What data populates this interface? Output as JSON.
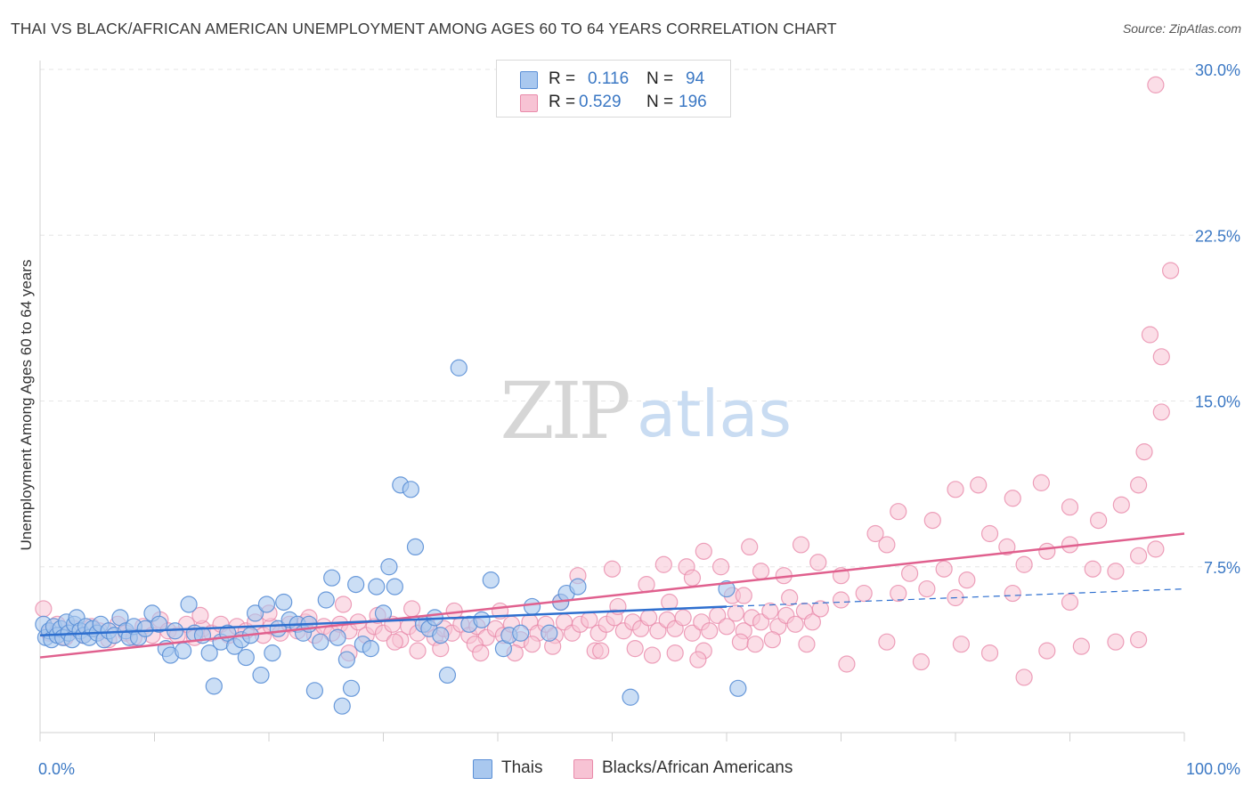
{
  "title": "THAI VS BLACK/AFRICAN AMERICAN UNEMPLOYMENT AMONG AGES 60 TO 64 YEARS CORRELATION CHART",
  "source": "Source: ZipAtlas.com",
  "watermark": {
    "zip": "ZIP",
    "atlas": "atlas"
  },
  "legend": {
    "r_label": "R =",
    "n_label": "N =",
    "series": [
      {
        "name": "Thais",
        "r": "0.116",
        "n": "94"
      },
      {
        "name": "Blacks/African Americans",
        "r": "0.529",
        "n": "196"
      }
    ]
  },
  "colors": {
    "thai_fill": "#a9c8ef",
    "thai_stroke": "#5a8fd6",
    "thai_line": "#2e6fcf",
    "black_fill": "#f7c3d4",
    "black_stroke": "#e98aaa",
    "black_line": "#e0608e",
    "axis_label": "#3b78c4",
    "grid": "#e6e6e6"
  },
  "chart_data": {
    "type": "scatter",
    "title": "THAI VS BLACK/AFRICAN AMERICAN UNEMPLOYMENT AMONG AGES 60 TO 64 YEARS CORRELATION CHART",
    "xlabel": "",
    "ylabel": "Unemployment Among Ages 60 to 64 years",
    "xlim": [
      0,
      100
    ],
    "ylim": [
      0,
      30
    ],
    "x_tick_labels": [
      "0.0%",
      "100.0%"
    ],
    "y_ticks": [
      7.5,
      15.0,
      22.5,
      30.0
    ],
    "y_tick_labels": [
      "7.5%",
      "15.0%",
      "22.5%",
      "30.0%"
    ],
    "grid": true,
    "legend_position": "top-center",
    "series": [
      {
        "name": "Thais",
        "r": 0.116,
        "n": 94,
        "trend": {
          "x": [
            0,
            60,
            100
          ],
          "y": [
            4.4,
            5.7,
            6.5
          ],
          "solid_until": 60
        },
        "points": [
          [
            0.3,
            4.9
          ],
          [
            0.5,
            4.3
          ],
          [
            0.8,
            4.6
          ],
          [
            1.0,
            4.2
          ],
          [
            1.2,
            4.8
          ],
          [
            1.5,
            4.4
          ],
          [
            1.8,
            4.7
          ],
          [
            2.0,
            4.3
          ],
          [
            2.3,
            5.0
          ],
          [
            2.5,
            4.5
          ],
          [
            2.8,
            4.2
          ],
          [
            3.0,
            4.9
          ],
          [
            3.2,
            5.2
          ],
          [
            3.5,
            4.6
          ],
          [
            3.8,
            4.4
          ],
          [
            4.0,
            4.8
          ],
          [
            4.3,
            4.3
          ],
          [
            4.6,
            4.7
          ],
          [
            5.0,
            4.5
          ],
          [
            5.3,
            4.9
          ],
          [
            5.6,
            4.2
          ],
          [
            6.0,
            4.6
          ],
          [
            6.5,
            4.4
          ],
          [
            7.0,
            5.2
          ],
          [
            7.5,
            4.6
          ],
          [
            7.8,
            4.3
          ],
          [
            8.2,
            4.8
          ],
          [
            8.6,
            4.3
          ],
          [
            9.2,
            4.7
          ],
          [
            9.8,
            5.4
          ],
          [
            10.4,
            4.9
          ],
          [
            11.0,
            3.8
          ],
          [
            11.4,
            3.5
          ],
          [
            11.8,
            4.6
          ],
          [
            12.5,
            3.7
          ],
          [
            13.0,
            5.8
          ],
          [
            13.5,
            4.5
          ],
          [
            14.2,
            4.4
          ],
          [
            14.8,
            3.6
          ],
          [
            15.2,
            2.1
          ],
          [
            15.8,
            4.1
          ],
          [
            16.4,
            4.5
          ],
          [
            17.0,
            3.9
          ],
          [
            17.6,
            4.2
          ],
          [
            18.0,
            3.4
          ],
          [
            18.4,
            4.4
          ],
          [
            18.8,
            5.4
          ],
          [
            19.3,
            2.6
          ],
          [
            19.8,
            5.8
          ],
          [
            20.3,
            3.6
          ],
          [
            20.8,
            4.7
          ],
          [
            21.3,
            5.9
          ],
          [
            21.8,
            5.1
          ],
          [
            22.5,
            4.9
          ],
          [
            23.0,
            4.5
          ],
          [
            23.5,
            4.9
          ],
          [
            24.0,
            1.9
          ],
          [
            24.5,
            4.1
          ],
          [
            25.0,
            6.0
          ],
          [
            25.5,
            7.0
          ],
          [
            26.0,
            4.3
          ],
          [
            26.4,
            1.2
          ],
          [
            26.8,
            3.3
          ],
          [
            27.2,
            2.0
          ],
          [
            27.6,
            6.7
          ],
          [
            28.2,
            4.0
          ],
          [
            28.9,
            3.8
          ],
          [
            29.4,
            6.6
          ],
          [
            30.0,
            5.4
          ],
          [
            30.5,
            7.5
          ],
          [
            31.0,
            6.6
          ],
          [
            31.5,
            11.2
          ],
          [
            32.4,
            11.0
          ],
          [
            32.8,
            8.4
          ],
          [
            33.5,
            4.9
          ],
          [
            34.0,
            4.7
          ],
          [
            34.5,
            5.2
          ],
          [
            35.0,
            4.4
          ],
          [
            35.6,
            2.6
          ],
          [
            36.6,
            16.5
          ],
          [
            37.5,
            4.9
          ],
          [
            38.6,
            5.1
          ],
          [
            39.4,
            6.9
          ],
          [
            40.5,
            3.8
          ],
          [
            41.0,
            4.4
          ],
          [
            42.0,
            4.5
          ],
          [
            43.0,
            5.7
          ],
          [
            44.5,
            4.5
          ],
          [
            45.5,
            5.9
          ],
          [
            46.0,
            6.3
          ],
          [
            47.0,
            6.6
          ],
          [
            51.6,
            1.6
          ],
          [
            60.0,
            6.5
          ],
          [
            61.0,
            2.0
          ]
        ]
      },
      {
        "name": "Blacks/African Americans",
        "r": 0.529,
        "n": 196,
        "trend": {
          "x": [
            0,
            100
          ],
          "y": [
            3.4,
            9.0
          ]
        },
        "points": [
          [
            0.3,
            5.6
          ],
          [
            0.8,
            4.5
          ],
          [
            1.5,
            4.9
          ],
          [
            2.2,
            4.3
          ],
          [
            3.0,
            4.7
          ],
          [
            3.8,
            4.4
          ],
          [
            4.5,
            4.8
          ],
          [
            5.2,
            4.6
          ],
          [
            6.0,
            4.2
          ],
          [
            6.8,
            4.9
          ],
          [
            7.5,
            4.5
          ],
          [
            8.2,
            4.3
          ],
          [
            9.0,
            4.8
          ],
          [
            9.8,
            4.4
          ],
          [
            10.5,
            5.1
          ],
          [
            11.2,
            4.6
          ],
          [
            12.0,
            4.4
          ],
          [
            12.8,
            4.9
          ],
          [
            13.5,
            4.3
          ],
          [
            14.2,
            4.7
          ],
          [
            15.0,
            4.5
          ],
          [
            15.8,
            4.9
          ],
          [
            16.5,
            4.4
          ],
          [
            17.2,
            4.8
          ],
          [
            18.0,
            4.6
          ],
          [
            18.8,
            5.0
          ],
          [
            19.5,
            4.4
          ],
          [
            20.2,
            4.8
          ],
          [
            21.0,
            4.5
          ],
          [
            21.8,
            4.9
          ],
          [
            22.5,
            4.6
          ],
          [
            23.2,
            5.0
          ],
          [
            24.0,
            4.4
          ],
          [
            24.8,
            4.8
          ],
          [
            25.5,
            4.5
          ],
          [
            26.2,
            4.9
          ],
          [
            27.0,
            4.6
          ],
          [
            27.8,
            5.0
          ],
          [
            28.5,
            4.4
          ],
          [
            29.2,
            4.8
          ],
          [
            30.0,
            4.5
          ],
          [
            30.8,
            4.9
          ],
          [
            31.5,
            4.2
          ],
          [
            32.2,
            4.8
          ],
          [
            33.0,
            4.5
          ],
          [
            33.8,
            4.9
          ],
          [
            34.5,
            4.3
          ],
          [
            35.3,
            4.7
          ],
          [
            36.0,
            4.5
          ],
          [
            36.8,
            4.9
          ],
          [
            37.5,
            4.4
          ],
          [
            38.2,
            4.8
          ],
          [
            39.0,
            4.3
          ],
          [
            39.8,
            4.7
          ],
          [
            40.5,
            4.4
          ],
          [
            41.2,
            4.9
          ],
          [
            42.0,
            4.2
          ],
          [
            42.8,
            5.0
          ],
          [
            43.5,
            4.5
          ],
          [
            44.2,
            4.9
          ],
          [
            45.0,
            4.4
          ],
          [
            45.8,
            5.0
          ],
          [
            46.5,
            4.5
          ],
          [
            47.2,
            4.9
          ],
          [
            48.0,
            5.1
          ],
          [
            48.8,
            4.5
          ],
          [
            49.5,
            4.9
          ],
          [
            50.2,
            5.2
          ],
          [
            51.0,
            4.6
          ],
          [
            51.8,
            5.0
          ],
          [
            52.5,
            4.7
          ],
          [
            53.2,
            5.2
          ],
          [
            54.0,
            4.6
          ],
          [
            54.8,
            5.1
          ],
          [
            55.5,
            4.7
          ],
          [
            56.2,
            5.2
          ],
          [
            57.0,
            4.5
          ],
          [
            57.8,
            5.0
          ],
          [
            58.5,
            4.6
          ],
          [
            59.2,
            5.3
          ],
          [
            60.0,
            4.8
          ],
          [
            60.8,
            5.4
          ],
          [
            61.5,
            4.6
          ],
          [
            62.2,
            5.2
          ],
          [
            63.0,
            5.0
          ],
          [
            63.8,
            5.5
          ],
          [
            64.5,
            4.8
          ],
          [
            65.2,
            5.3
          ],
          [
            66.0,
            4.9
          ],
          [
            66.8,
            5.5
          ],
          [
            67.5,
            5.0
          ],
          [
            68.2,
            5.6
          ],
          [
            14.0,
            5.3
          ],
          [
            20.0,
            5.4
          ],
          [
            23.5,
            5.2
          ],
          [
            26.5,
            5.8
          ],
          [
            29.5,
            5.3
          ],
          [
            32.5,
            5.6
          ],
          [
            36.2,
            5.5
          ],
          [
            40.2,
            5.5
          ],
          [
            45.5,
            5.9
          ],
          [
            50.5,
            5.7
          ],
          [
            55.0,
            5.9
          ],
          [
            60.5,
            6.2
          ],
          [
            65.5,
            6.1
          ],
          [
            70.0,
            6.0
          ],
          [
            75.0,
            6.3
          ],
          [
            80.0,
            6.1
          ],
          [
            85.0,
            6.3
          ],
          [
            90.0,
            5.9
          ],
          [
            31.0,
            4.1
          ],
          [
            35.0,
            3.8
          ],
          [
            38.0,
            4.0
          ],
          [
            41.5,
            3.6
          ],
          [
            44.8,
            3.9
          ],
          [
            48.5,
            3.7
          ],
          [
            52.0,
            3.8
          ],
          [
            55.5,
            3.6
          ],
          [
            58.0,
            3.7
          ],
          [
            61.2,
            4.1
          ],
          [
            64.0,
            4.2
          ],
          [
            67.0,
            4.0
          ],
          [
            70.5,
            3.1
          ],
          [
            74.0,
            4.1
          ],
          [
            77.0,
            3.2
          ],
          [
            80.5,
            4.0
          ],
          [
            83.0,
            3.6
          ],
          [
            86.0,
            2.5
          ],
          [
            88.0,
            3.7
          ],
          [
            91.0,
            3.9
          ],
          [
            94.0,
            4.1
          ],
          [
            96.0,
            4.2
          ],
          [
            27.0,
            3.6
          ],
          [
            33.0,
            3.7
          ],
          [
            38.5,
            3.6
          ],
          [
            43.0,
            4.0
          ],
          [
            49.0,
            3.7
          ],
          [
            53.5,
            3.5
          ],
          [
            57.5,
            3.3
          ],
          [
            62.5,
            4.0
          ],
          [
            56.5,
            7.5
          ],
          [
            57.0,
            7.0
          ],
          [
            59.5,
            7.5
          ],
          [
            61.5,
            6.2
          ],
          [
            63.0,
            7.3
          ],
          [
            65.0,
            7.1
          ],
          [
            66.5,
            8.5
          ],
          [
            68.0,
            7.7
          ],
          [
            70.0,
            7.1
          ],
          [
            72.0,
            6.3
          ],
          [
            74.0,
            8.5
          ],
          [
            76.0,
            7.2
          ],
          [
            77.5,
            6.5
          ],
          [
            79.0,
            7.4
          ],
          [
            81.0,
            6.9
          ],
          [
            83.0,
            9.0
          ],
          [
            84.5,
            8.4
          ],
          [
            86.0,
            7.6
          ],
          [
            88.0,
            8.2
          ],
          [
            90.0,
            8.5
          ],
          [
            92.0,
            7.4
          ],
          [
            94.0,
            7.3
          ],
          [
            96.0,
            8.0
          ],
          [
            97.5,
            8.3
          ],
          [
            47.0,
            7.1
          ],
          [
            50.0,
            7.4
          ],
          [
            53.0,
            6.7
          ],
          [
            54.5,
            7.6
          ],
          [
            58.0,
            8.2
          ],
          [
            62.0,
            8.4
          ],
          [
            73.0,
            9.0
          ],
          [
            75.0,
            10.0
          ],
          [
            78.0,
            9.6
          ],
          [
            80.0,
            11.0
          ],
          [
            82.0,
            11.2
          ],
          [
            85.0,
            10.6
          ],
          [
            87.5,
            11.3
          ],
          [
            90.0,
            10.2
          ],
          [
            92.5,
            9.6
          ],
          [
            94.5,
            10.3
          ],
          [
            96.0,
            11.2
          ],
          [
            96.5,
            12.7
          ],
          [
            98.0,
            14.5
          ],
          [
            97.0,
            18.0
          ],
          [
            98.0,
            17.0
          ],
          [
            98.8,
            20.9
          ],
          [
            97.5,
            29.3
          ]
        ]
      }
    ]
  }
}
